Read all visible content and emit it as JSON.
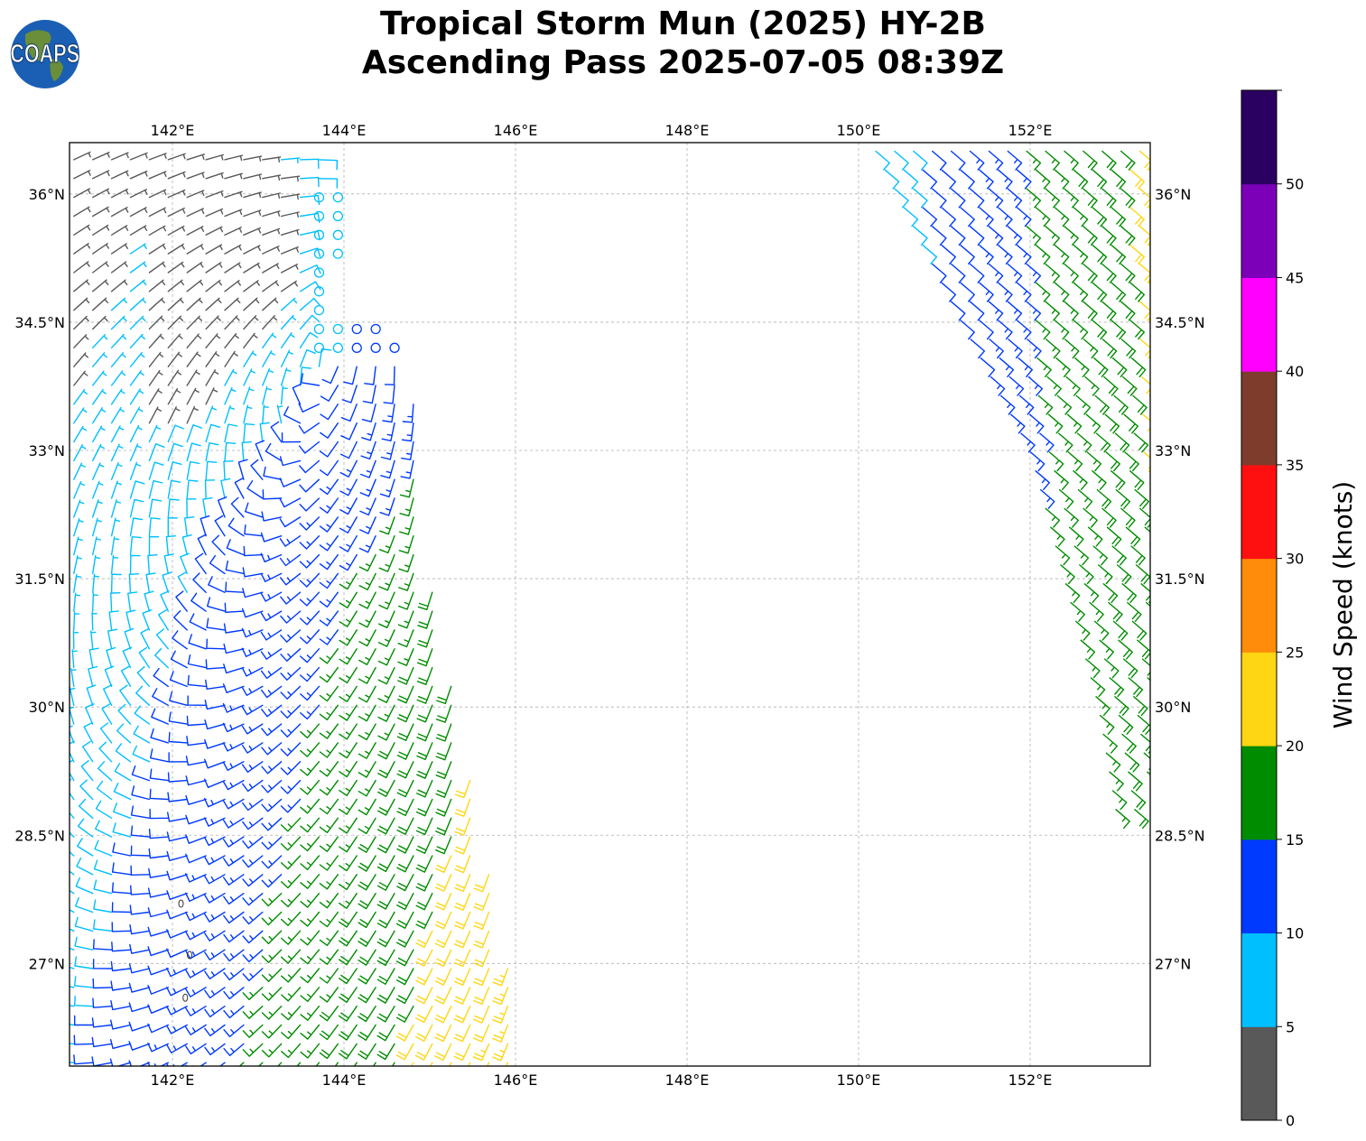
{
  "header": {
    "title_line1": "Tropical Storm Mun (2025) HY-2B",
    "title_line2": "Ascending Pass 2025-07-05 08:39Z"
  },
  "logo": {
    "text": "COAPS",
    "ocean_color": "#1a5fb4",
    "land_color": "#6b8e3a"
  },
  "map": {
    "projection": "PlateCarree",
    "lon_range": [
      140.8,
      153.4
    ],
    "lat_range": [
      25.8,
      36.6
    ],
    "lon_ticks": [
      142,
      144,
      146,
      148,
      150,
      152
    ],
    "lat_ticks": [
      27,
      28.5,
      30,
      31.5,
      33,
      34.5,
      36
    ],
    "lon_tick_labels": [
      "142°E",
      "144°E",
      "146°E",
      "148°E",
      "150°E",
      "152°E"
    ],
    "lat_tick_labels": [
      "27°N",
      "28.5°N",
      "30°N",
      "31.5°N",
      "33°N",
      "34.5°N",
      "36°N"
    ],
    "gridlines": true,
    "gridline_style": "dashed-gray",
    "storm_center_approx": {
      "lon": 144.2,
      "lat": 34.9
    },
    "swaths": [
      {
        "name": "west",
        "lat_range": [
          25.8,
          36.4
        ],
        "lon_west": 140.8,
        "lon_east_at_lat": [
          [
            36.4,
            143.8
          ],
          [
            33.5,
            144.9
          ],
          [
            31.5,
            145.0
          ],
          [
            30.0,
            145.3
          ],
          [
            28.5,
            145.6
          ],
          [
            27.0,
            145.9
          ],
          [
            25.8,
            146.1
          ]
        ]
      },
      {
        "name": "east",
        "lat_range": [
          28.8,
          36.5
        ],
        "lon_west_at_lat": [
          [
            36.5,
            150.2
          ],
          [
            34.5,
            151.2
          ],
          [
            33.0,
            152.0
          ],
          [
            31.5,
            152.4
          ],
          [
            30.0,
            152.8
          ],
          [
            28.8,
            153.0
          ]
        ],
        "lon_east": 153.4
      }
    ]
  },
  "colorbar": {
    "label": "Wind Speed (knots)",
    "tick_labels": [
      "0",
      "5",
      "10",
      "15",
      "20",
      "25",
      "30",
      "35",
      "40",
      "45",
      "50"
    ],
    "bins": [
      {
        "min": 0,
        "max": 5,
        "color": "#595959"
      },
      {
        "min": 5,
        "max": 10,
        "color": "#00bfff"
      },
      {
        "min": 10,
        "max": 15,
        "color": "#0039ff"
      },
      {
        "min": 15,
        "max": 20,
        "color": "#008c00"
      },
      {
        "min": 20,
        "max": 25,
        "color": "#ffd613"
      },
      {
        "min": 25,
        "max": 30,
        "color": "#ff8c0a"
      },
      {
        "min": 30,
        "max": 35,
        "color": "#ff1010"
      },
      {
        "min": 35,
        "max": 40,
        "color": "#7d3c2c"
      },
      {
        "min": 40,
        "max": 45,
        "color": "#ff00ff"
      },
      {
        "min": 45,
        "max": 50,
        "color": "#7c00b8"
      },
      {
        "min": 50,
        "max": 55,
        "color": "#2a0060"
      }
    ]
  }
}
